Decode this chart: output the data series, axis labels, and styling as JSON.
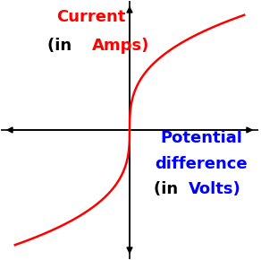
{
  "bg_color": "#ffffff",
  "curve_color": "#ff0000",
  "axis_color": "#000000",
  "x_label_color": "#0000ff",
  "y_label_color": "#ff0000",
  "black_color": "#000000",
  "font_size": 13,
  "xlim": [
    -1.0,
    1.0
  ],
  "ylim": [
    -1.0,
    1.0
  ],
  "curve_power": 0.35
}
